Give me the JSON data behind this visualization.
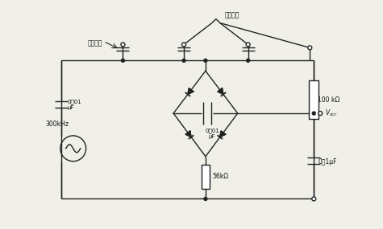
{
  "bg_color": "#f0efe8",
  "line_color": "#222222",
  "text_color": "#111111",
  "labels": {
    "ref_cap": "参考电容",
    "sense_cap": "敏感电容",
    "freq": "300kHz",
    "cap1": "0．01\nμF",
    "cap2": "0．01\nμF",
    "res1": "56kΩ",
    "res2": "100 kΩ",
    "vout": "V_{ocr}",
    "cap3": "0．1μF"
  }
}
